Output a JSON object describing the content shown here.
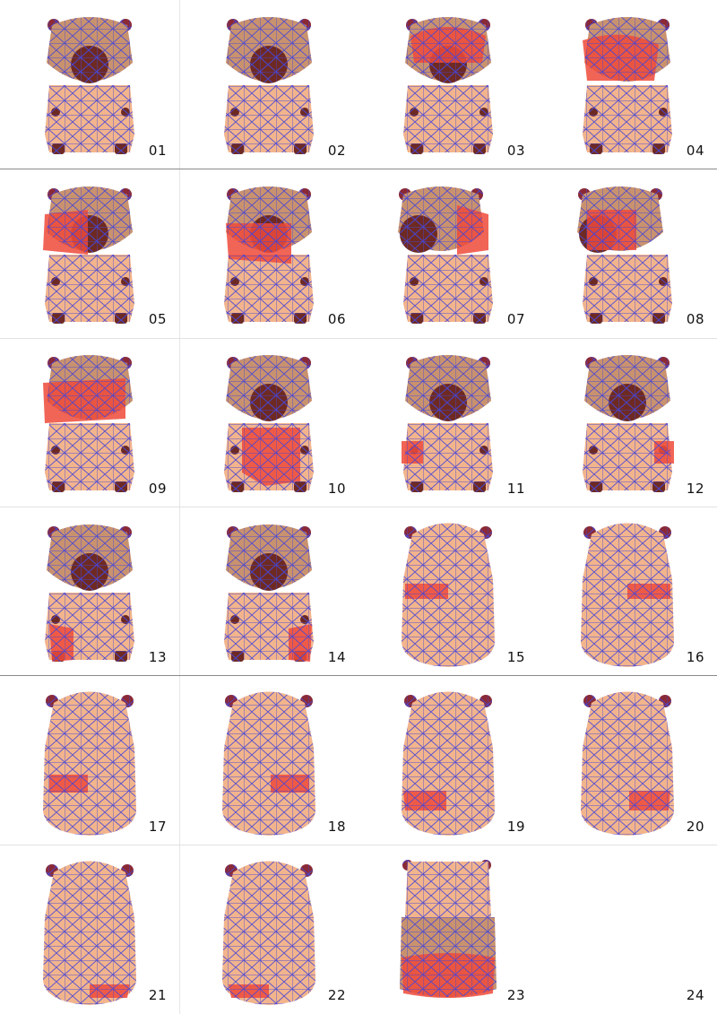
{
  "colors": {
    "skin": "#f2b48c",
    "shade": "#c9926e",
    "dark": "#6e2a22",
    "mesh": "#4646d8",
    "highlight": "#ee4a3a",
    "ear": "#8a2a36"
  },
  "steps": [
    {
      "label": "01",
      "view": "front",
      "highlight": "none"
    },
    {
      "label": "02",
      "view": "front",
      "highlight": "none"
    },
    {
      "label": "03",
      "view": "front",
      "highlight": "head-top"
    },
    {
      "label": "04",
      "view": "side",
      "highlight": "head-side"
    },
    {
      "label": "05",
      "view": "front",
      "highlight": "head-left"
    },
    {
      "label": "06",
      "view": "front",
      "highlight": "cheek-left"
    },
    {
      "label": "07",
      "view": "three-quarter",
      "highlight": "head-right"
    },
    {
      "label": "08",
      "view": "three-quarter",
      "highlight": "head-left-side"
    },
    {
      "label": "09",
      "view": "side",
      "highlight": "head-band"
    },
    {
      "label": "10",
      "view": "front",
      "highlight": "chest"
    },
    {
      "label": "11",
      "view": "front",
      "highlight": "arm-left"
    },
    {
      "label": "12",
      "view": "front",
      "highlight": "arm-right"
    },
    {
      "label": "13",
      "view": "front",
      "highlight": "leg-left"
    },
    {
      "label": "14",
      "view": "front",
      "highlight": "leg-right"
    },
    {
      "label": "15",
      "view": "back",
      "highlight": "back-left-mid"
    },
    {
      "label": "16",
      "view": "back",
      "highlight": "back-right-mid"
    },
    {
      "label": "17",
      "view": "back",
      "highlight": "back-left-low"
    },
    {
      "label": "18",
      "view": "back",
      "highlight": "back-right-low"
    },
    {
      "label": "19",
      "view": "back",
      "highlight": "back-left-lower"
    },
    {
      "label": "20",
      "view": "back",
      "highlight": "back-right-lower"
    },
    {
      "label": "21",
      "view": "back",
      "highlight": "back-right-bottom"
    },
    {
      "label": "22",
      "view": "back",
      "highlight": "back-left-bottom"
    },
    {
      "label": "23",
      "view": "bottom",
      "highlight": "base"
    },
    {
      "label": "24",
      "view": "empty",
      "highlight": "none"
    }
  ]
}
